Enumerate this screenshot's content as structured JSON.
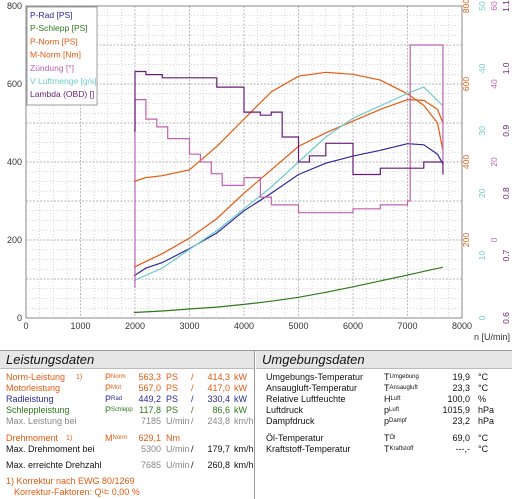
{
  "chart_data": {
    "type": "line",
    "xlabel": "n [U/min]",
    "xlim": [
      0,
      8000
    ],
    "xticks": [
      0,
      1000,
      2000,
      3000,
      4000,
      5000,
      6000,
      7000,
      8000
    ],
    "left_axis": {
      "ylim": [
        0,
        800
      ],
      "ticks": [
        0,
        200,
        400,
        600,
        800
      ]
    },
    "right_axes": [
      {
        "color": "#e45a10",
        "ticks": [
          "200",
          "400",
          "600",
          "800"
        ],
        "min": 0,
        "max": 800
      },
      {
        "color": "#6fcccc",
        "ticks": [
          "0",
          "10",
          "20",
          "30",
          "40",
          "50"
        ],
        "min": 0,
        "max": 50
      },
      {
        "color": "#c060b0",
        "ticks": [
          "0",
          "20",
          "40",
          "60"
        ],
        "min": -20,
        "max": 60
      },
      {
        "color": "#6a1a7a",
        "ticks": [
          "0.6",
          "0.7",
          "0.8",
          "0.9",
          "1.0",
          "1.1"
        ],
        "min": 0.6,
        "max": 1.1
      }
    ],
    "legend": {
      "placement": "top-left",
      "entries": [
        {
          "label": "P-Rad [PS]",
          "color": "#2a2a9a"
        },
        {
          "label": "P-Schlepp [PS]",
          "color": "#2d7a1a"
        },
        {
          "label": "P-Norm [PS]",
          "color": "#e45a10"
        },
        {
          "label": "M-Norm [Nm]",
          "color": "#e45a10"
        },
        {
          "label": "Zündung [°]",
          "color": "#c060b0"
        },
        {
          "label": "V Luftmenge [g/s]",
          "color": "#6fcccc"
        },
        {
          "label": "Lambda (OBD) []",
          "color": "#6a1a7a"
        }
      ]
    },
    "series": [
      {
        "name": "P-Rad [PS]",
        "color": "#2a2a9a",
        "x": [
          1980,
          2200,
          2500,
          3000,
          3500,
          4000,
          4500,
          5000,
          5500,
          6000,
          6500,
          7000,
          7300,
          7550,
          7650
        ],
        "y": [
          108,
          128,
          142,
          178,
          218,
          275,
          320,
          368,
          397,
          415,
          430,
          447,
          444,
          420,
          395
        ]
      },
      {
        "name": "P-Schlepp [PS]",
        "color": "#2d7a1a",
        "x": [
          1980,
          2500,
          3000,
          3500,
          4000,
          4500,
          5000,
          5500,
          6000,
          6500,
          7000,
          7500,
          7650
        ],
        "y": [
          14,
          18,
          23,
          28,
          35,
          43,
          53,
          66,
          80,
          95,
          110,
          126,
          130
        ]
      },
      {
        "name": "P-Norm [PS]",
        "color": "#e45a10",
        "x": [
          1980,
          2200,
          2500,
          3000,
          3500,
          4000,
          4500,
          5000,
          5500,
          6000,
          6500,
          7000,
          7300,
          7550,
          7650
        ],
        "y": [
          130,
          145,
          165,
          205,
          255,
          320,
          380,
          440,
          475,
          505,
          535,
          560,
          558,
          535,
          500
        ]
      },
      {
        "name": "M-Norm [Nm]",
        "color": "#e45a10",
        "x": [
          1980,
          2200,
          2500,
          3000,
          3500,
          4000,
          4500,
          5000,
          5500,
          6000,
          6500,
          7000,
          7300,
          7550,
          7650
        ],
        "y": [
          350,
          360,
          365,
          380,
          440,
          510,
          580,
          620,
          630,
          625,
          610,
          575,
          545,
          500,
          430
        ]
      },
      {
        "name": "V Luftmenge [g/s]",
        "color": "#6fcccc",
        "x": [
          1980,
          2500,
          3000,
          3500,
          4000,
          4500,
          5000,
          5500,
          6000,
          6500,
          7000,
          7300,
          7650
        ],
        "y": [
          6,
          8,
          11,
          14,
          17.5,
          21,
          25,
          29,
          32,
          34,
          36,
          37,
          34
        ]
      },
      {
        "name": "Zündung [°]",
        "color": "#c060b0",
        "x": [
          1980,
          2000,
          2200,
          2400,
          2600,
          3000,
          3200,
          3400,
          3600,
          4000,
          4300,
          4500,
          5000,
          5500,
          6000,
          6500,
          7000,
          7050,
          7500,
          7650
        ],
        "y": [
          -12,
          36,
          31,
          29,
          26,
          22,
          20,
          17,
          14,
          16,
          11,
          9,
          7,
          7,
          8,
          9,
          10,
          50,
          50,
          20
        ]
      },
      {
        "name": "Lambda (OBD) []",
        "color": "#6a1a7a",
        "x": [
          1980,
          2000,
          2200,
          2500,
          3000,
          3500,
          4000,
          4300,
          4500,
          4700,
          5000,
          5200,
          5500,
          6000,
          6500,
          7000,
          7300,
          7650
        ],
        "y": [
          0.9,
          0.995,
          0.99,
          0.985,
          0.985,
          0.97,
          0.93,
          0.925,
          0.93,
          0.89,
          0.85,
          0.86,
          0.88,
          0.83,
          0.84,
          0.84,
          0.85,
          0.83
        ]
      }
    ]
  },
  "left_panel": {
    "title": "Leistungsdaten",
    "rows": [
      {
        "label": "Norm-Leistung",
        "note": "1)",
        "sym": "P",
        "sub": "Norm",
        "v1": "563,3",
        "u1": "PS",
        "sep": "/",
        "v2": "414,3",
        "u2": "kW",
        "cls": "c-norm"
      },
      {
        "label": "Motorleistung",
        "note": "",
        "sym": "P",
        "sub": "Mot",
        "v1": "567,0",
        "u1": "PS",
        "sep": "/",
        "v2": "417,0",
        "u2": "kW",
        "cls": "c-mot"
      },
      {
        "label": "Radleistung",
        "note": "",
        "sym": "P",
        "sub": "Rad",
        "v1": "449,2",
        "u1": "PS",
        "sep": "/",
        "v2": "330,4",
        "u2": "kW",
        "cls": "c-rad"
      },
      {
        "label": "Schleppleistung",
        "note": "",
        "sym": "P",
        "sub": "Schlepp",
        "v1": "117,8",
        "u1": "PS",
        "sep": "/",
        "v2": "86,6",
        "u2": "kW",
        "cls": "c-sch"
      },
      {
        "label": "Max. Leistung bei",
        "note": "",
        "sym": "",
        "sub": "",
        "v1": "7185",
        "u1": "U/min",
        "sep": "/",
        "v2": "243,8",
        "u2": "km/h",
        "cls": "c-grey"
      }
    ],
    "drehmoment": {
      "label": "Drehmoment",
      "note": "1)",
      "sym": "M",
      "sub": "Norm",
      "value": "629,1",
      "unit": "Nm"
    },
    "max_drehmoment": {
      "label": "Max. Drehmoment bei",
      "v1": "5300",
      "u1": "U/min",
      "sep": "/",
      "v2": "179,7",
      "u2": "km/h"
    },
    "max_drehzahl": {
      "label": "Max. erreichte Drehzahl",
      "v1": "7685",
      "u1": "U/min",
      "sep": "/",
      "v2": "260,8",
      "u2": "km/h"
    },
    "korrektur_1": "1) Korrektur nach EWG 80/1269",
    "korrektur_2_label": "Korrektur-Faktoren: Q",
    "korrektur_2_sub": "U",
    "korrektur_2_value": "=   0,00 %"
  },
  "right_panel": {
    "title": "Umgebungsdaten",
    "rows": [
      {
        "label": "Umgebungs-Temperatur",
        "sym": "T",
        "sub": "Umgebung",
        "value": "19,9",
        "unit": "°C"
      },
      {
        "label": "Ansaugluft-Temperatur",
        "sym": "T",
        "sub": "Ansaugluft",
        "value": "23,3",
        "unit": "°C"
      },
      {
        "label": "Relative Luftfeuchte",
        "sym": "H",
        "sub": "Luft",
        "value": "100,0",
        "unit": "%"
      },
      {
        "label": "Luftdruck",
        "sym": "p",
        "sub": "Luft",
        "value": "1015,9",
        "unit": "hPa"
      },
      {
        "label": "Dampfdruck",
        "sym": "p",
        "sub": "Dampf",
        "value": "23,2",
        "unit": "hPa"
      },
      {
        "label": "Öl-Temperatur",
        "sym": "T",
        "sub": "Öl",
        "value": "69,0",
        "unit": "°C"
      },
      {
        "label": "Kraftstoff-Temperatur",
        "sym": "T",
        "sub": "Kraftstoff",
        "value": "---,-",
        "unit": "°C"
      }
    ]
  }
}
